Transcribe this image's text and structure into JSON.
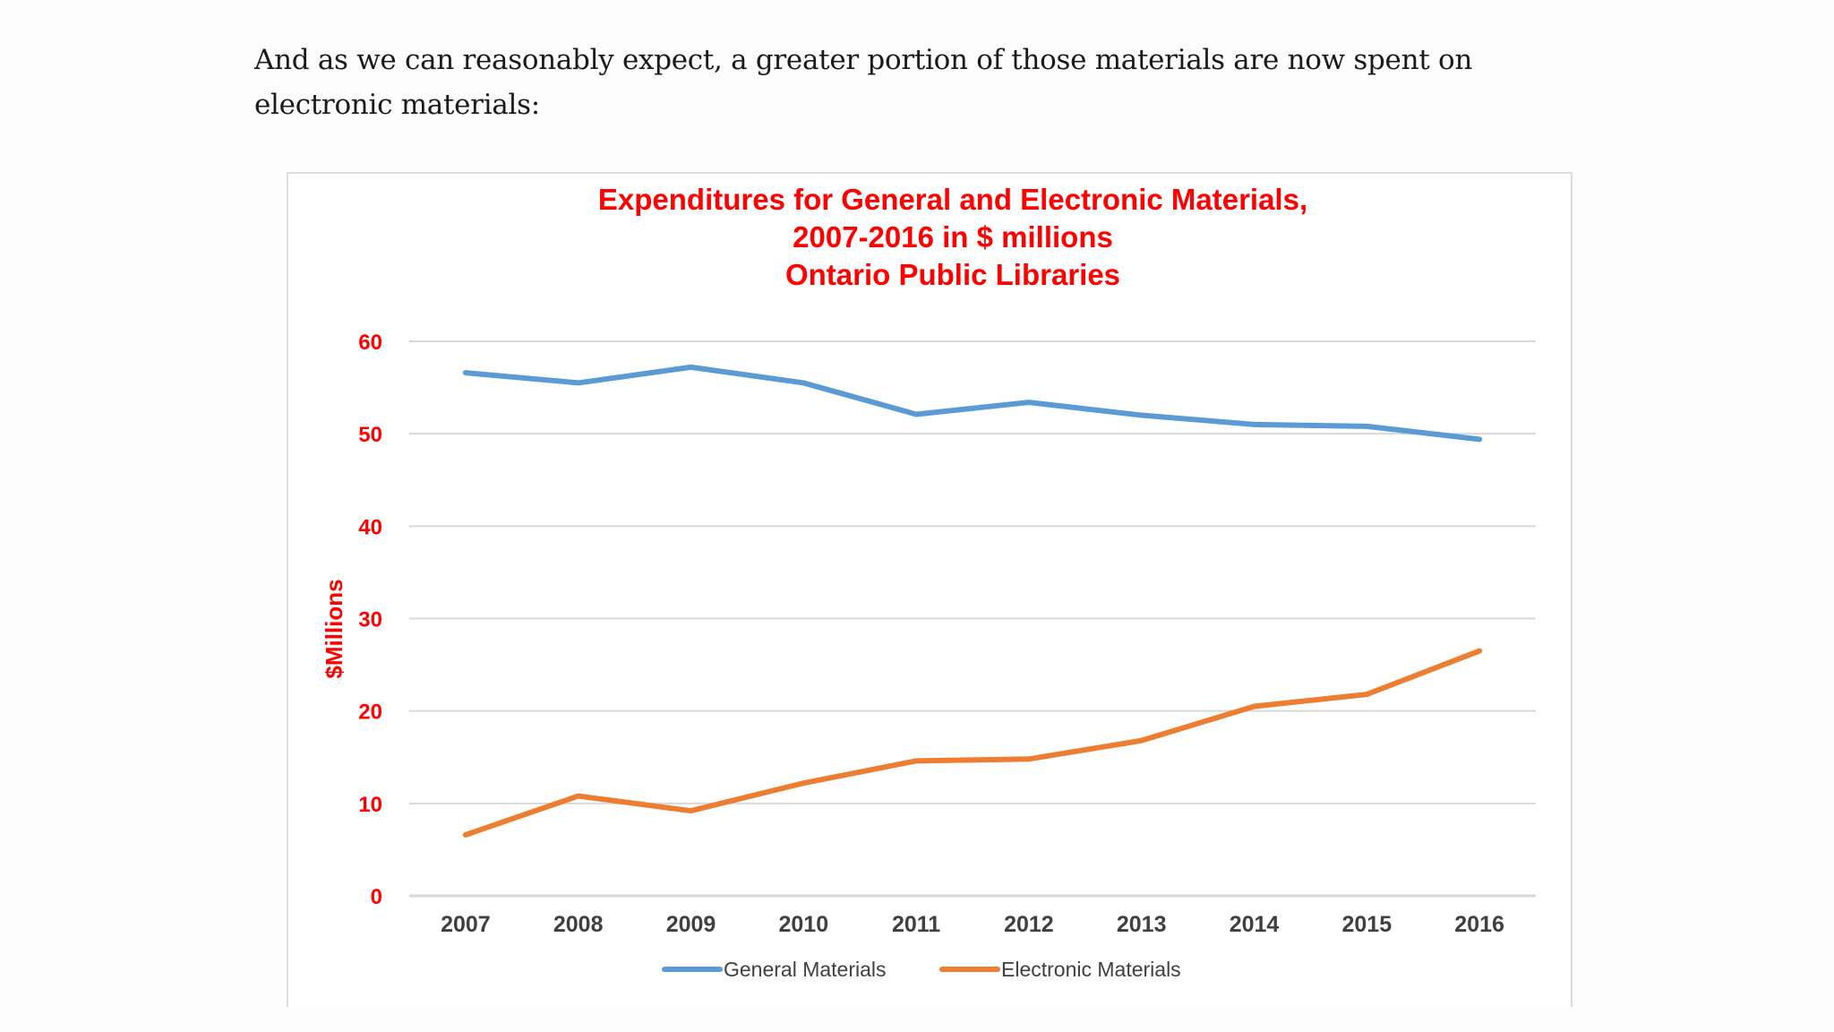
{
  "article": {
    "intro_text": "And as we can reasonably expect, a greater portion of those materials are now spent on electronic materials:"
  },
  "chart_data": {
    "type": "line",
    "title": "Expenditures for General and Electronic Materials, 2007-2016 in $ millions Ontario Public Libraries",
    "title_lines": [
      "Expenditures for General and Electronic Materials,",
      "2007-2016 in $ millions",
      "Ontario Public Libraries"
    ],
    "xlabel": "",
    "ylabel": "$Millions",
    "x": [
      "2007",
      "2008",
      "2009",
      "2010",
      "2011",
      "2012",
      "2013",
      "2014",
      "2015",
      "2016"
    ],
    "ylim": [
      0,
      60
    ],
    "yticks": [
      0,
      10,
      20,
      30,
      40,
      50,
      60
    ],
    "grid": true,
    "legend_position": "bottom",
    "series": [
      {
        "name": "General Materials",
        "color": "#5b9bd5",
        "values": [
          56.6,
          55.5,
          57.2,
          55.5,
          52.1,
          53.4,
          52.0,
          51.0,
          50.8,
          49.4
        ]
      },
      {
        "name": "Electronic Materials",
        "color": "#ed7d31",
        "values": [
          6.6,
          10.8,
          9.2,
          12.2,
          14.6,
          14.8,
          16.8,
          20.5,
          21.8,
          26.5
        ]
      }
    ],
    "colors": {
      "title": "#ff0000",
      "axis_labels": "#ff0000",
      "x_ticks": "#404040",
      "gridline": "#d9d9d9"
    }
  }
}
